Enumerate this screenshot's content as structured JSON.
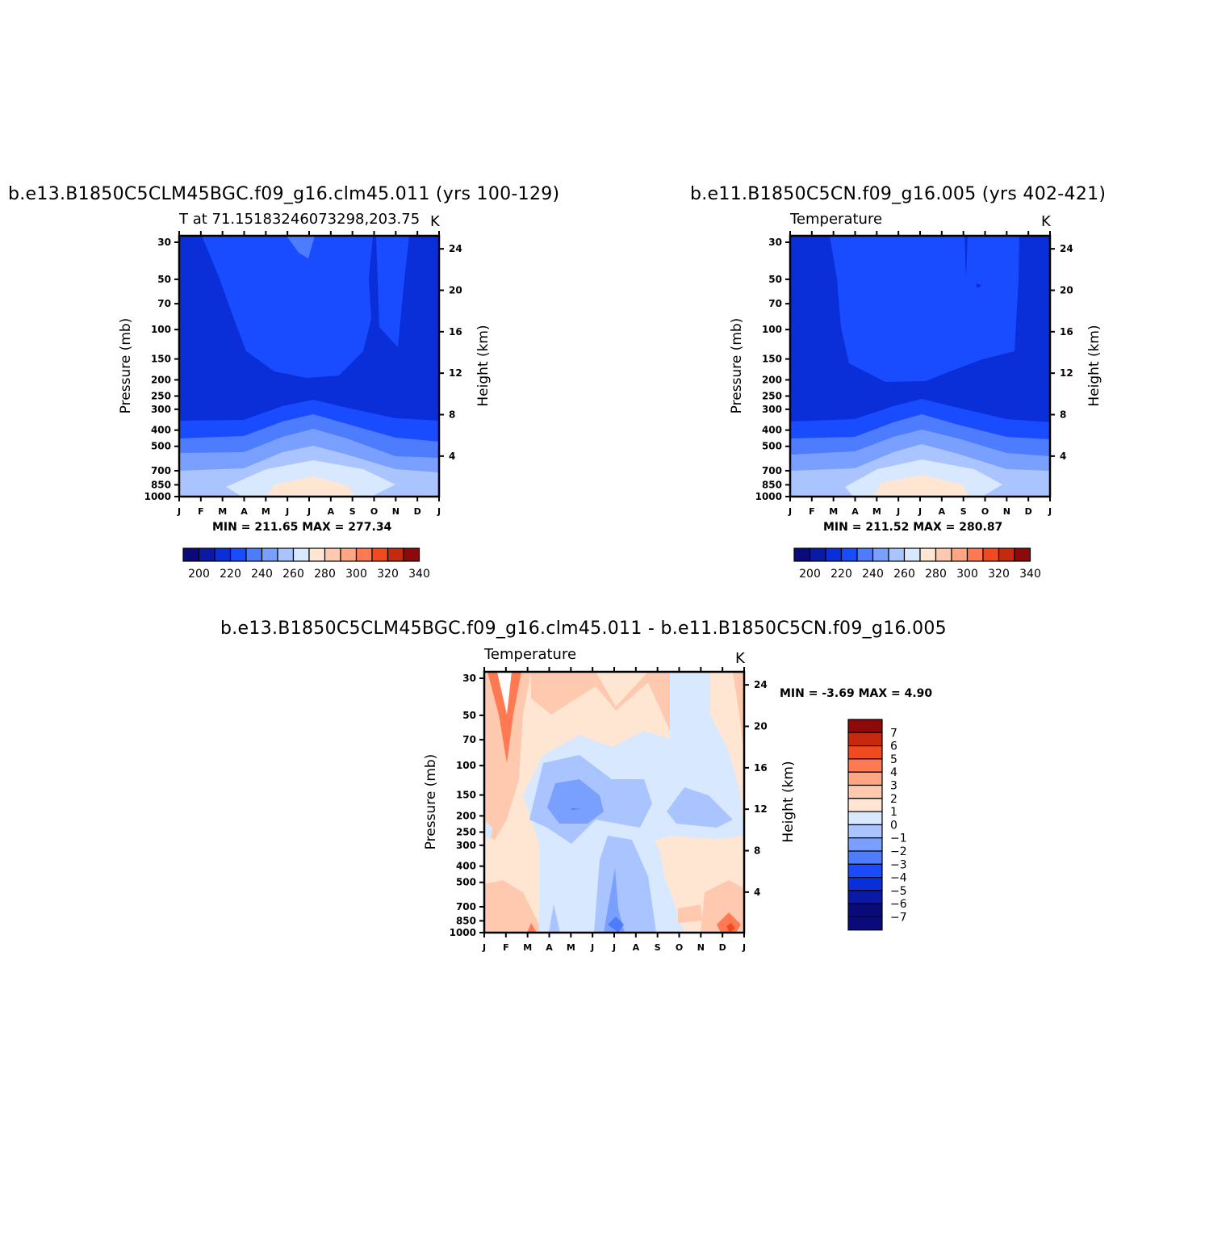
{
  "panels": [
    {
      "id": "p1",
      "main_title": "b.e13.B1850C5CLM45BGC.f09_g16.clm45.011 (yrs 100-129)",
      "left_title": "T at 71.15183246073298,203.75",
      "units": "K",
      "minmax": "MIN = 211.65  MAX = 277.34",
      "ylabel": "Pressure (mb)",
      "ylabel2": "Height (km)"
    },
    {
      "id": "p2",
      "main_title": "b.e11.B1850C5CN.f09_g16.005 (yrs 402-421)",
      "left_title": "Temperature",
      "units": "K",
      "minmax": "MIN = 211.52  MAX = 280.87",
      "ylabel": "Pressure (mb)",
      "ylabel2": "Height (km)"
    },
    {
      "id": "p3",
      "main_title": "b.e13.B1850C5CLM45BGC.f09_g16.clm45.011 - b.e11.B1850C5CN.f09_g16.005",
      "left_title": "Temperature",
      "units": "K",
      "minmax": "MIN =   -3.69  MAX =     4.90",
      "ylabel": "Pressure (mb)",
      "ylabel2": "Height (km)"
    }
  ],
  "chart_data": [
    {
      "type": "heatmap",
      "title": "b.e13.B1850C5CLM45BGC.f09_g16.clm45.011 (yrs 100-129)",
      "x": [
        "J",
        "F",
        "M",
        "A",
        "M",
        "J",
        "J",
        "A",
        "S",
        "O",
        "N",
        "D",
        "J"
      ],
      "y_ticks": [
        30,
        50,
        70,
        100,
        150,
        200,
        250,
        300,
        400,
        500,
        700,
        850,
        1000
      ],
      "y2_ticks": [
        24,
        20,
        16,
        12,
        8,
        4
      ],
      "ylim": [
        1000,
        30
      ],
      "value_range": [
        211.65,
        277.34
      ],
      "contour_levels": [
        200,
        210,
        220,
        230,
        240,
        250,
        260,
        270,
        280,
        290,
        300,
        310,
        320,
        330,
        340
      ],
      "colorbar_labels": [
        200,
        220,
        240,
        260,
        280,
        300,
        320,
        340
      ]
    },
    {
      "type": "heatmap",
      "title": "b.e11.B1850C5CN.f09_g16.005 (yrs 402-421)",
      "x": [
        "J",
        "F",
        "M",
        "A",
        "M",
        "J",
        "J",
        "A",
        "S",
        "O",
        "N",
        "D",
        "J"
      ],
      "y_ticks": [
        30,
        50,
        70,
        100,
        150,
        200,
        250,
        300,
        400,
        500,
        700,
        850,
        1000
      ],
      "y2_ticks": [
        24,
        20,
        16,
        12,
        8,
        4
      ],
      "ylim": [
        1000,
        30
      ],
      "value_range": [
        211.52,
        280.87
      ],
      "contour_levels": [
        200,
        210,
        220,
        230,
        240,
        250,
        260,
        270,
        280,
        290,
        300,
        310,
        320,
        330,
        340
      ],
      "colorbar_labels": [
        200,
        220,
        240,
        260,
        280,
        300,
        320,
        340
      ]
    },
    {
      "type": "heatmap",
      "title": "b.e13.B1850C5CLM45BGC.f09_g16.clm45.011 - b.e11.B1850C5CN.f09_g16.005",
      "x": [
        "J",
        "F",
        "M",
        "A",
        "M",
        "J",
        "J",
        "A",
        "S",
        "O",
        "N",
        "D",
        "J"
      ],
      "y_ticks": [
        30,
        50,
        70,
        100,
        150,
        200,
        250,
        300,
        400,
        500,
        700,
        850,
        1000
      ],
      "y2_ticks": [
        24,
        20,
        16,
        12,
        8,
        4
      ],
      "ylim": [
        1000,
        30
      ],
      "value_range": [
        -3.69,
        4.9
      ],
      "contour_levels": [
        -7,
        -6,
        -5,
        -4,
        -3,
        -2,
        -1,
        0,
        1,
        2,
        3,
        4,
        5,
        6,
        7
      ],
      "colorbar_labels": [
        7,
        6,
        5,
        4,
        3,
        2,
        1,
        0,
        -1,
        -2,
        -3,
        -4,
        -5,
        -6,
        -7
      ]
    }
  ],
  "palette": {
    "temp": [
      "#0a0a7a",
      "#0a1aa6",
      "#0a2fd9",
      "#1a4cff",
      "#4d7cff",
      "#7aa0ff",
      "#aac4ff",
      "#d7e8ff",
      "#ffe6d2",
      "#ffc9b0",
      "#ffa685",
      "#ff7a52",
      "#f24a1f",
      "#c42a0d",
      "#8c0a0a"
    ]
  }
}
